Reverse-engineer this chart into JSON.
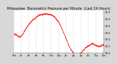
{
  "title": "Milwaukee  Barometric Pressure per Minute  (Last 24 Hours)",
  "bg_color": "#d8d8d8",
  "plot_bg_color": "#ffffff",
  "line_color": "#ff0000",
  "grid_color": "#888888",
  "title_fontsize": 3.5,
  "tick_fontsize": 2.5,
  "ylim": [
    29.0,
    30.25
  ],
  "ytick_labels": [
    "29.0",
    "29.2",
    "29.4",
    "29.6",
    "29.8",
    "30.0",
    "30.2"
  ],
  "ytick_vals": [
    29.0,
    29.2,
    29.4,
    29.6,
    29.8,
    30.0,
    30.2
  ],
  "curve_points_x": [
    0,
    50,
    100,
    150,
    200,
    250,
    300,
    350,
    380,
    420,
    480,
    520,
    560,
    600,
    640,
    680,
    720,
    760,
    800,
    840,
    880,
    920,
    960,
    1000,
    1040,
    1080,
    1120,
    1160,
    1200,
    1230,
    1260,
    1290,
    1320,
    1360,
    1400,
    1440
  ],
  "curve_points_y": [
    29.55,
    29.52,
    29.48,
    29.6,
    29.75,
    29.88,
    29.98,
    30.05,
    30.1,
    30.13,
    30.15,
    30.16,
    30.14,
    30.12,
    30.08,
    30.0,
    29.9,
    29.75,
    29.58,
    29.4,
    29.22,
    29.08,
    28.98,
    28.9,
    28.95,
    29.02,
    29.1,
    29.18,
    29.22,
    29.25,
    29.28,
    29.25,
    29.22,
    29.2,
    29.22,
    29.24
  ],
  "vgrid_every": 120,
  "xlim": [
    0,
    1440
  ]
}
